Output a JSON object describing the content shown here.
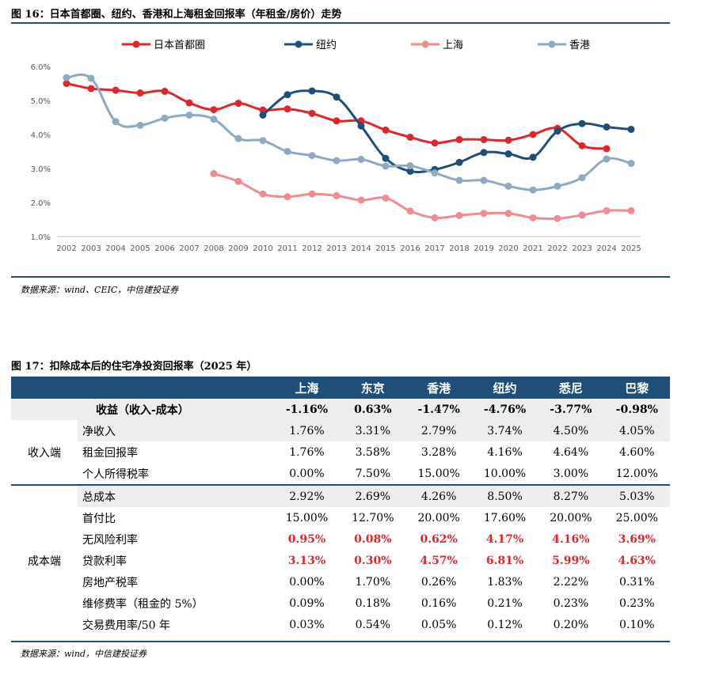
{
  "fig16": {
    "title": "图 16：日本首都圈、纽约、香港和上海租金回报率（年租金/房价）走势",
    "source": "数据来源：wind、CEIC，中信建投证券"
  },
  "chart_data": {
    "type": "line",
    "x": [
      "2002",
      "2003",
      "2004",
      "2005",
      "2006",
      "2007",
      "2008",
      "2009",
      "2010",
      "2011",
      "2012",
      "2013",
      "2014",
      "2015",
      "2016",
      "2017",
      "2018",
      "2019",
      "2020",
      "2021",
      "2022",
      "2023",
      "2024",
      "2025"
    ],
    "ylim": [
      1.0,
      6.0
    ],
    "yticks": [
      "1.0%",
      "2.0%",
      "3.0%",
      "4.0%",
      "5.0%",
      "6.0%"
    ],
    "grid": false,
    "legend": "top",
    "series": [
      {
        "name": "日本首都圈",
        "color": "#e0262b",
        "values": [
          5.5,
          5.35,
          5.3,
          5.22,
          5.27,
          4.93,
          4.73,
          4.92,
          4.72,
          4.75,
          4.62,
          4.4,
          4.4,
          4.13,
          3.92,
          3.75,
          3.85,
          3.85,
          3.83,
          4.0,
          4.18,
          3.67,
          3.58,
          null
        ]
      },
      {
        "name": "纽约",
        "color": "#1f4e79",
        "values": [
          null,
          null,
          null,
          null,
          null,
          null,
          null,
          null,
          4.57,
          5.17,
          5.28,
          5.1,
          4.25,
          3.3,
          2.92,
          2.97,
          3.18,
          3.47,
          3.43,
          3.33,
          4.1,
          4.32,
          4.22,
          4.15
        ]
      },
      {
        "name": "上海",
        "color": "#f28b8f",
        "values": [
          null,
          null,
          null,
          null,
          null,
          null,
          2.85,
          2.62,
          2.25,
          2.17,
          2.25,
          2.2,
          2.07,
          2.13,
          1.75,
          1.55,
          1.62,
          1.68,
          1.68,
          1.55,
          1.53,
          1.63,
          1.76,
          1.76
        ]
      },
      {
        "name": "香港",
        "color": "#8ea9c1",
        "values": [
          5.67,
          5.65,
          4.38,
          4.27,
          4.48,
          4.57,
          4.45,
          3.88,
          3.82,
          3.5,
          3.38,
          3.23,
          3.27,
          3.07,
          3.08,
          2.87,
          2.65,
          2.65,
          2.48,
          2.37,
          2.48,
          2.73,
          3.28,
          3.15
        ]
      }
    ]
  },
  "fig17": {
    "title": "图 17：扣除成本后的住宅净投资回报率（2025 年）",
    "source": "数据来源：wind，中信建投证券",
    "columns": [
      "",
      "上海",
      "东京",
      "香港",
      "纽约",
      "悉尼",
      "巴黎"
    ],
    "summary": {
      "label": "收益（收入-成本）",
      "values": [
        "-1.16%",
        "0.63%",
        "-1.47%",
        "-4.76%",
        "-3.77%",
        "-0.98%"
      ]
    },
    "income_group": "收入端",
    "cost_group": "成本端",
    "income_rows": [
      {
        "label": "净收入",
        "values": [
          "1.76%",
          "3.31%",
          "2.79%",
          "3.74%",
          "4.50%",
          "4.05%"
        ]
      },
      {
        "label": "租金回报率",
        "values": [
          "1.76%",
          "3.58%",
          "3.28%",
          "4.16%",
          "4.64%",
          "4.60%"
        ]
      },
      {
        "label": "个人所得税率",
        "values": [
          "0.00%",
          "7.50%",
          "15.00%",
          "10.00%",
          "3.00%",
          "12.00%"
        ]
      }
    ],
    "cost_rows": [
      {
        "label": "总成本",
        "values": [
          "2.92%",
          "2.69%",
          "4.26%",
          "8.50%",
          "8.27%",
          "5.03%"
        ]
      },
      {
        "label": "首付比",
        "values": [
          "15.00%",
          "12.70%",
          "20.00%",
          "17.60%",
          "20.00%",
          "25.00%"
        ]
      },
      {
        "label": "无风险利率",
        "values": [
          "0.95%",
          "0.08%",
          "0.62%",
          "4.17%",
          "4.16%",
          "3.69%"
        ],
        "highlight": true
      },
      {
        "label": "贷款利率",
        "values": [
          "3.13%",
          "0.30%",
          "4.57%",
          "6.81%",
          "5.99%",
          "4.63%"
        ],
        "highlight": true
      },
      {
        "label": "房地产税率",
        "values": [
          "0.00%",
          "1.70%",
          "0.26%",
          "1.83%",
          "2.22%",
          "0.31%"
        ]
      },
      {
        "label": "维修费率（租金的 5%）",
        "values": [
          "0.09%",
          "0.18%",
          "0.16%",
          "0.21%",
          "0.23%",
          "0.23%"
        ]
      },
      {
        "label": "交易费用率/50 年",
        "values": [
          "0.03%",
          "0.54%",
          "0.05%",
          "0.12%",
          "0.20%",
          "0.10%"
        ]
      }
    ]
  }
}
